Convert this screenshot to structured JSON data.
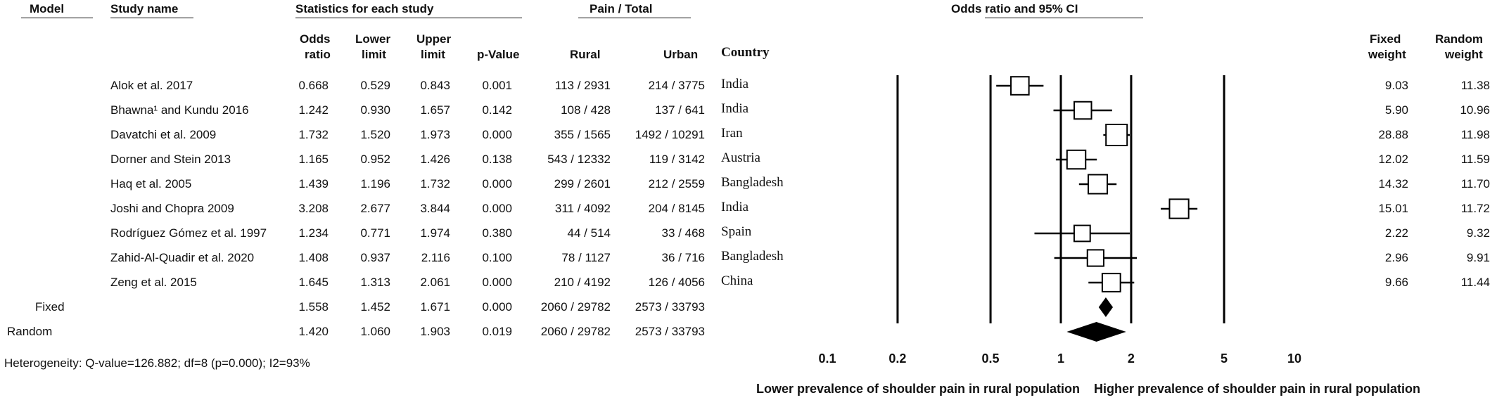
{
  "headers": {
    "model": "Model",
    "study_name": "Study name",
    "stats_group": "Statistics for each study",
    "pain_group": "Pain / Total",
    "or_group": "Odds ratio and 95% CI",
    "odds_ratio_1": "Odds",
    "odds_ratio_2": "ratio",
    "lower_1": "Lower",
    "lower_2": "limit",
    "upper_1": "Upper",
    "upper_2": "limit",
    "pvalue": "p-Value",
    "rural": "Rural",
    "urban": "Urban",
    "country": "Country",
    "fixed_weight_1": "Fixed",
    "fixed_weight_2": "weight",
    "random_weight_1": "Random",
    "random_weight_2": "weight"
  },
  "studies": [
    {
      "name": "Alok et al. 2017",
      "or": "0.668",
      "lower": "0.529",
      "upper": "0.843",
      "p": "0.001",
      "rural": "113 / 2931",
      "urban": "214 / 3775",
      "country": "India",
      "fixed_w": "9.03",
      "random_w": "11.38"
    },
    {
      "name": "Bhawna¹ and Kundu 2016",
      "or": "1.242",
      "lower": "0.930",
      "upper": "1.657",
      "p": "0.142",
      "rural": "108 / 428",
      "urban": "137 / 641",
      "country": "India",
      "fixed_w": "5.90",
      "random_w": "10.96"
    },
    {
      "name": "Davatchi et al. 2009",
      "or": "1.732",
      "lower": "1.520",
      "upper": "1.973",
      "p": "0.000",
      "rural": "355 / 1565",
      "urban": "1492 / 10291",
      "country": "Iran",
      "fixed_w": "28.88",
      "random_w": "11.98"
    },
    {
      "name": "Dorner and Stein 2013",
      "or": "1.165",
      "lower": "0.952",
      "upper": "1.426",
      "p": "0.138",
      "rural": "543 / 12332",
      "urban": "119 / 3142",
      "country": "Austria",
      "fixed_w": "12.02",
      "random_w": "11.59"
    },
    {
      "name": "Haq et al. 2005",
      "or": "1.439",
      "lower": "1.196",
      "upper": "1.732",
      "p": "0.000",
      "rural": "299 / 2601",
      "urban": "212 / 2559",
      "country": "Bangladesh",
      "fixed_w": "14.32",
      "random_w": "11.70"
    },
    {
      "name": "Joshi and Chopra 2009",
      "or": "3.208",
      "lower": "2.677",
      "upper": "3.844",
      "p": "0.000",
      "rural": "311 / 4092",
      "urban": "204 / 8145",
      "country": "India",
      "fixed_w": "15.01",
      "random_w": "11.72"
    },
    {
      "name": "Rodríguez Gómez et al. 1997",
      "or": "1.234",
      "lower": "0.771",
      "upper": "1.974",
      "p": "0.380",
      "rural": "44 / 514",
      "urban": "33 / 468",
      "country": "Spain",
      "fixed_w": "2.22",
      "random_w": "9.32"
    },
    {
      "name": "Zahid-Al-Quadir et al. 2020",
      "or": "1.408",
      "lower": "0.937",
      "upper": "2.116",
      "p": "0.100",
      "rural": "78 / 1127",
      "urban": "36 / 716",
      "country": "Bangladesh",
      "fixed_w": "2.96",
      "random_w": "9.91"
    },
    {
      "name": "Zeng et al. 2015",
      "or": "1.645",
      "lower": "1.313",
      "upper": "2.061",
      "p": "0.000",
      "rural": "210 / 4192",
      "urban": "126 / 4056",
      "country": "China",
      "fixed_w": "9.66",
      "random_w": "11.44"
    }
  ],
  "pooled": [
    {
      "model": "Fixed",
      "or": "1.558",
      "lower": "1.452",
      "upper": "1.671",
      "p": "0.000",
      "rural": "2060 / 29782",
      "urban": "2573 / 33793"
    },
    {
      "model": "Random",
      "or": "1.420",
      "lower": "1.060",
      "upper": "1.903",
      "p": "0.019",
      "rural": "2060 / 29782",
      "urban": "2573 / 33793"
    }
  ],
  "heterogeneity": "Heterogeneity: Q-value=126.882; df=8 (p=0.000); I2=93%",
  "chart_data": {
    "type": "forest",
    "x_scale": "log",
    "xlim": [
      0.1,
      10
    ],
    "x_ticks": [
      0.1,
      0.2,
      0.5,
      1,
      2,
      5,
      10
    ],
    "x_tick_labels": [
      "0.1",
      "0.2",
      "0.5",
      "1",
      "2",
      "5",
      "10"
    ],
    "reference_lines": [
      0.2,
      0.5,
      1,
      2,
      5
    ],
    "left_label": "Lower prevalence of shoulder pain in rural population",
    "right_label": "Higher prevalence of shoulder pain in rural population",
    "studies": [
      {
        "name": "Alok et al. 2017",
        "or": 0.668,
        "lower": 0.529,
        "upper": 0.843,
        "weight": 9.03
      },
      {
        "name": "Bhawna¹ and Kundu 2016",
        "or": 1.242,
        "lower": 0.93,
        "upper": 1.657,
        "weight": 5.9
      },
      {
        "name": "Davatchi et al. 2009",
        "or": 1.732,
        "lower": 1.52,
        "upper": 1.973,
        "weight": 28.88
      },
      {
        "name": "Dorner and Stein 2013",
        "or": 1.165,
        "lower": 0.952,
        "upper": 1.426,
        "weight": 12.02
      },
      {
        "name": "Haq et al. 2005",
        "or": 1.439,
        "lower": 1.196,
        "upper": 1.732,
        "weight": 14.32
      },
      {
        "name": "Joshi and Chopra 2009",
        "or": 3.208,
        "lower": 2.677,
        "upper": 3.844,
        "weight": 15.01
      },
      {
        "name": "Rodríguez Gómez et al. 1997",
        "or": 1.234,
        "lower": 0.771,
        "upper": 1.974,
        "weight": 2.22
      },
      {
        "name": "Zahid-Al-Quadir et al. 2020",
        "or": 1.408,
        "lower": 0.937,
        "upper": 2.116,
        "weight": 2.96
      },
      {
        "name": "Zeng et al. 2015",
        "or": 1.645,
        "lower": 1.313,
        "upper": 2.061,
        "weight": 9.66
      }
    ],
    "pooled": [
      {
        "model": "Fixed",
        "or": 1.558,
        "lower": 1.452,
        "upper": 1.671
      },
      {
        "model": "Random",
        "or": 1.42,
        "lower": 1.06,
        "upper": 1.903
      }
    ]
  }
}
